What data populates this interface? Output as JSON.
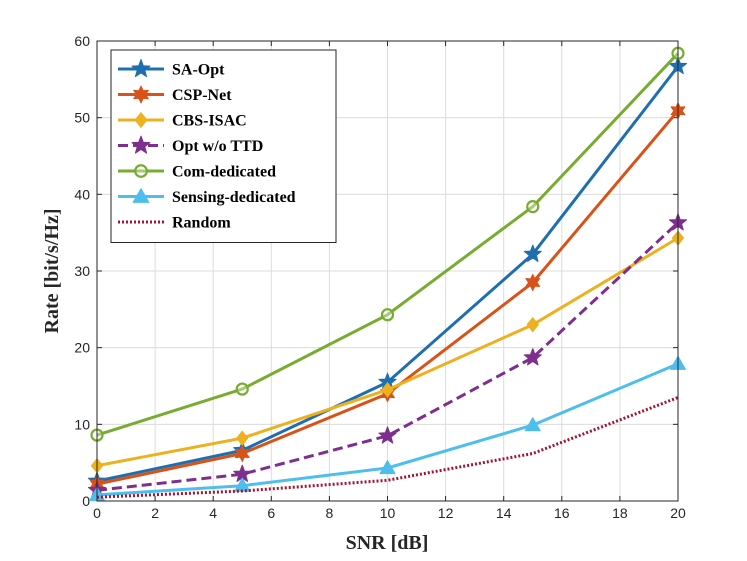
{
  "chart_data": {
    "type": "line",
    "title": "",
    "xlabel": "SNR [dB]",
    "ylabel": "Rate [bit/s/Hz]",
    "xlim": [
      0,
      20
    ],
    "ylim": [
      0,
      60
    ],
    "xticks": [
      0,
      2,
      4,
      6,
      8,
      10,
      12,
      14,
      16,
      18,
      20
    ],
    "yticks": [
      0,
      10,
      20,
      30,
      40,
      50,
      60
    ],
    "grid": true,
    "legend_position": "top-left",
    "x": [
      0,
      5,
      10,
      15,
      20
    ],
    "series": [
      {
        "name": "SA-Opt",
        "values": [
          2.6,
          6.6,
          15.5,
          32.2,
          56.7
        ],
        "color": "#1f6fb0",
        "marker": "star",
        "line": "solid"
      },
      {
        "name": "CSP-Net",
        "values": [
          2.2,
          6.2,
          14.0,
          28.5,
          50.9
        ],
        "color": "#d95319",
        "marker": "hexagram",
        "line": "solid"
      },
      {
        "name": "CBS-ISAC",
        "values": [
          4.6,
          8.2,
          14.5,
          23.0,
          34.3
        ],
        "color": "#edb120",
        "marker": "diamond",
        "line": "solid"
      },
      {
        "name": "Opt w/o TTD",
        "values": [
          1.4,
          3.5,
          8.5,
          18.7,
          36.3
        ],
        "color": "#7e2f8e",
        "marker": "star",
        "line": "dashed"
      },
      {
        "name": "Com-dedicated",
        "values": [
          8.6,
          14.6,
          24.3,
          38.4,
          58.4
        ],
        "color": "#77ac30",
        "marker": "circle",
        "line": "solid"
      },
      {
        "name": "Sensing-dedicated",
        "values": [
          0.8,
          2.0,
          4.3,
          9.9,
          17.9
        ],
        "color": "#4dbeee",
        "marker": "triangle",
        "line": "solid"
      },
      {
        "name": "Random",
        "values": [
          0.5,
          1.3,
          2.7,
          6.2,
          13.5
        ],
        "color": "#a2142f",
        "marker": "none",
        "line": "dotted"
      }
    ]
  }
}
